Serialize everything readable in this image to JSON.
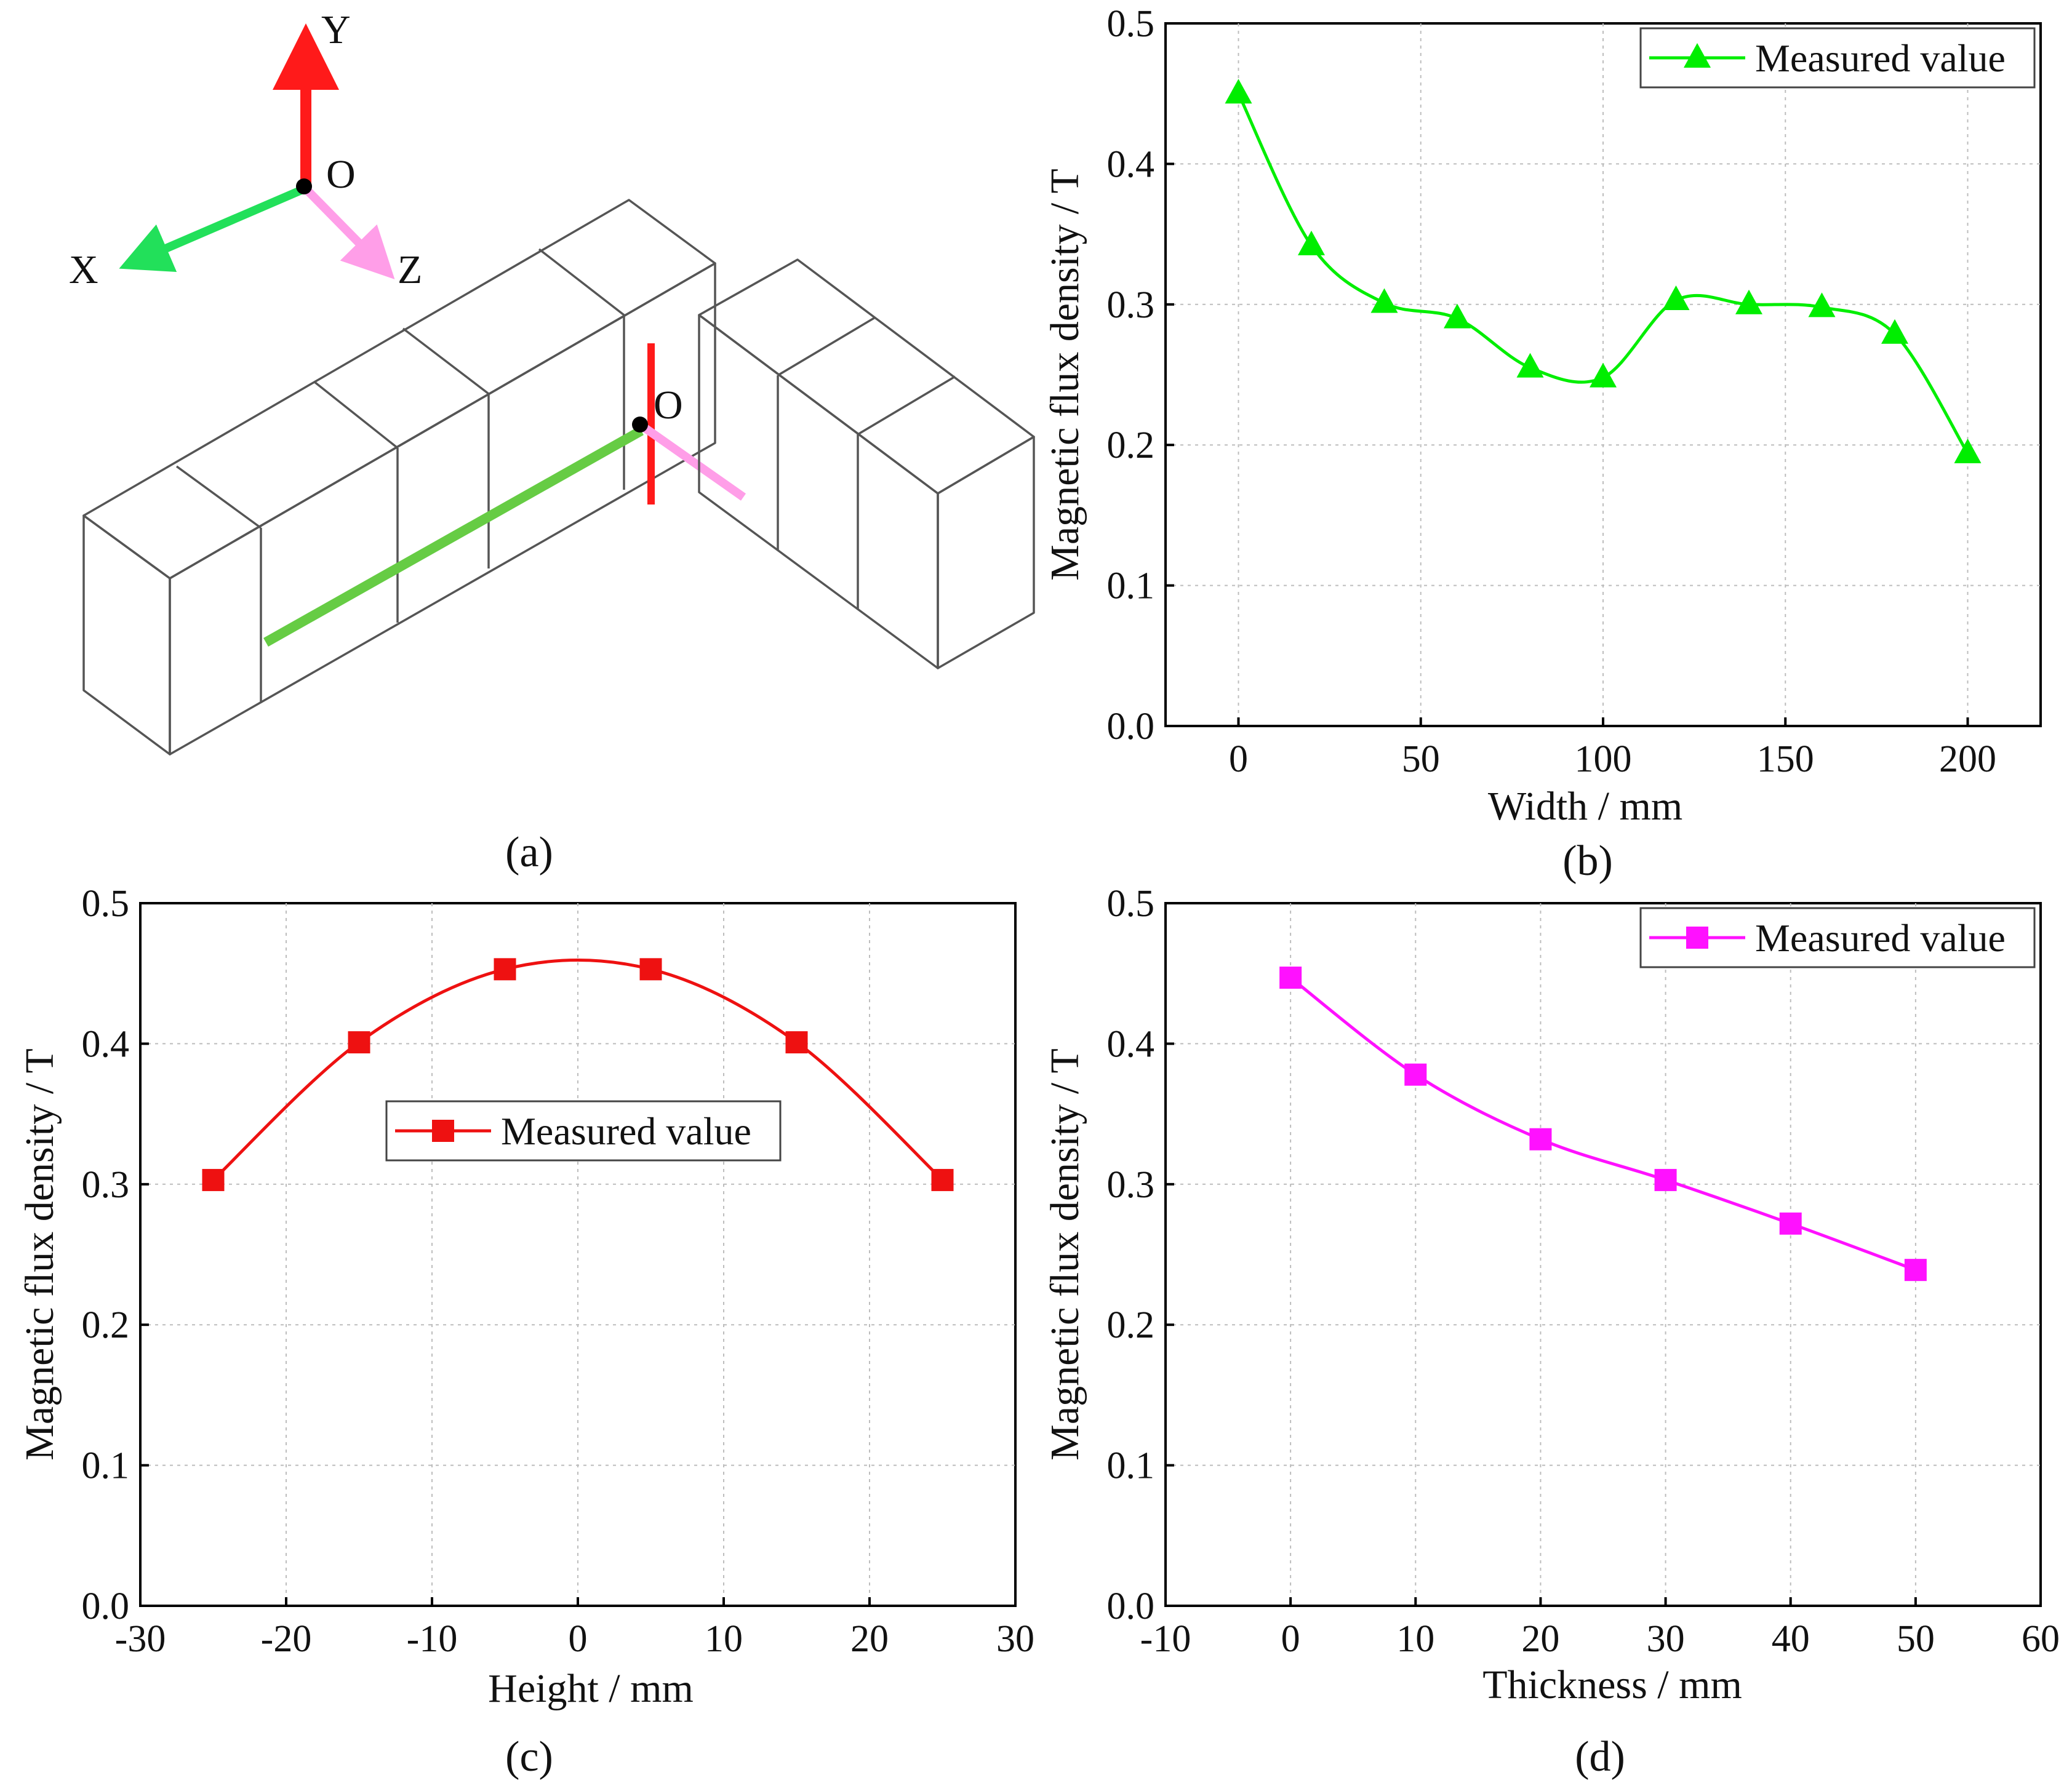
{
  "diagram": {
    "caption": "(a)",
    "axis_labels": {
      "y": "Y",
      "x": "X",
      "z": "Z",
      "origin": "O",
      "origin_on_magnet": "O"
    },
    "colors": {
      "x_axis": "#22e05a",
      "y_axis": "#ff1a1a",
      "z_axis": "#ff9ee8",
      "width_line": "#66cc44",
      "height_line": "#ff1a1a",
      "thickness_line": "#ff9ee8"
    }
  },
  "chart_data": [
    {
      "id": "b",
      "type": "line",
      "caption": "(b)",
      "title": "",
      "xlabel": "Width / mm",
      "ylabel": "Magnetic flux density / T",
      "xlim": [
        -20,
        220
      ],
      "ylim": [
        0.0,
        0.5
      ],
      "xticks": [
        0,
        50,
        100,
        150,
        200
      ],
      "yticks": [
        0.0,
        0.1,
        0.2,
        0.3,
        0.4,
        0.5
      ],
      "grid": true,
      "legend_position": "top-right",
      "marker": "triangle",
      "color": "#00ee00",
      "series": [
        {
          "name": "Measured value",
          "x": [
            0,
            20,
            40,
            60,
            80,
            100,
            120,
            140,
            160,
            180,
            200
          ],
          "y": [
            0.45,
            0.342,
            0.301,
            0.29,
            0.255,
            0.248,
            0.303,
            0.3,
            0.298,
            0.279,
            0.194
          ]
        }
      ]
    },
    {
      "id": "c",
      "type": "line",
      "caption": "(c)",
      "title": "",
      "xlabel": "Height / mm",
      "ylabel": "Magnetic flux density / T",
      "xlim": [
        -30,
        30
      ],
      "ylim": [
        0.0,
        0.5
      ],
      "xticks": [
        -30,
        -20,
        -10,
        0,
        10,
        20,
        30
      ],
      "yticks": [
        0.0,
        0.1,
        0.2,
        0.3,
        0.4,
        0.5
      ],
      "grid": true,
      "legend_position": "center",
      "marker": "square",
      "color": "#ee1111",
      "series": [
        {
          "name": "Measured value",
          "x": [
            -25,
            -15,
            -5,
            5,
            15,
            25
          ],
          "y": [
            0.303,
            0.401,
            0.453,
            0.453,
            0.401,
            0.303
          ]
        }
      ]
    },
    {
      "id": "d",
      "type": "line",
      "caption": "(d)",
      "title": "",
      "xlabel": "Thickness / mm",
      "ylabel": "Magnetic flux density / T",
      "xlim": [
        -10,
        60
      ],
      "ylim": [
        0.0,
        0.5
      ],
      "xticks": [
        -10,
        0,
        10,
        20,
        30,
        40,
        50,
        60
      ],
      "yticks": [
        0.0,
        0.1,
        0.2,
        0.3,
        0.4,
        0.5
      ],
      "grid": true,
      "legend_position": "top-right",
      "marker": "square",
      "color": "#ff11ff",
      "series": [
        {
          "name": "Measured value",
          "x": [
            0,
            10,
            20,
            30,
            40,
            50
          ],
          "y": [
            0.447,
            0.378,
            0.332,
            0.303,
            0.272,
            0.239
          ]
        }
      ]
    }
  ]
}
